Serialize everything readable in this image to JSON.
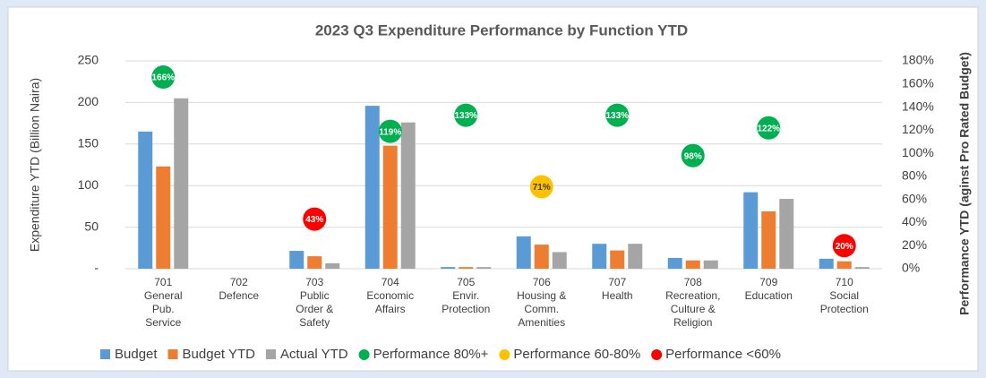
{
  "chart_data": {
    "type": "bar",
    "title": "2023 Q3 Expenditure Performance by Function YTD",
    "y_label": "Expenditure YTD (Billion Naira)",
    "y2_label": "Performance YTD (aginst Pro Rated Budget)",
    "categories": [
      [
        "701",
        "General",
        "Pub.",
        "Service"
      ],
      [
        "702",
        "Defence"
      ],
      [
        "703",
        "Public",
        "Order &",
        "Safety"
      ],
      [
        "704",
        "Economic",
        "Affairs"
      ],
      [
        "705",
        "Envir.",
        "Protection"
      ],
      [
        "706",
        "Housing &",
        "Comm.",
        "Amenities"
      ],
      [
        "707",
        "Health"
      ],
      [
        "708",
        "Recreation,",
        "Culture &",
        "Religion"
      ],
      [
        "709",
        "Education"
      ],
      [
        "710",
        "Social",
        "Protection"
      ]
    ],
    "ylim": [
      0,
      250
    ],
    "yticks": [
      {
        "value": 0,
        "label": "-"
      },
      50,
      100,
      150,
      200,
      250
    ],
    "y2lim": [
      0,
      180
    ],
    "y2ticks": [
      {
        "value": 0,
        "label": "0%"
      },
      {
        "value": 20,
        "label": "20%"
      },
      {
        "value": 40,
        "label": "40%"
      },
      {
        "value": 60,
        "label": "60%"
      },
      {
        "value": 80,
        "label": "80%"
      },
      {
        "value": 100,
        "label": "100%"
      },
      {
        "value": 120,
        "label": "120%"
      },
      {
        "value": 140,
        "label": "140%"
      },
      {
        "value": 160,
        "label": "160%"
      },
      {
        "value": 180,
        "label": "180%"
      }
    ],
    "grid": true,
    "series": [
      {
        "name": "Budget",
        "color": "#5b9bd5",
        "values": [
          165,
          0,
          21.5,
          196,
          2,
          39,
          30,
          13,
          92,
          12
        ]
      },
      {
        "name": "Budget YTD",
        "color": "#ed7d31",
        "values": [
          123,
          0,
          15,
          148,
          2,
          29,
          22,
          10,
          69,
          9
        ]
      },
      {
        "name": "Actual YTD",
        "color": "#a5a5a5",
        "values": [
          205,
          0,
          6.5,
          176,
          2,
          20,
          30,
          10,
          84,
          2
        ]
      },
      {
        "name": "Performance 80%+",
        "type": "scatter",
        "axis": "y2",
        "color": "#00b050",
        "text_color": "#ffffff",
        "values": [
          166,
          null,
          null,
          119,
          133,
          null,
          133,
          98,
          122,
          null
        ],
        "value_labels": [
          "166%",
          null,
          null,
          "119%",
          "133%",
          null,
          "133%",
          "98%",
          "122%",
          null
        ]
      },
      {
        "name": "Performance 60-80%",
        "type": "scatter",
        "axis": "y2",
        "color": "#ffc000",
        "text_color": "#404040",
        "values": [
          null,
          null,
          null,
          null,
          null,
          71,
          null,
          null,
          null,
          null
        ],
        "value_labels": [
          null,
          null,
          null,
          null,
          null,
          "71%",
          null,
          null,
          null,
          null
        ]
      },
      {
        "name": "Performance <60%",
        "type": "scatter",
        "axis": "y2",
        "color": "#ff0000",
        "text_color": "#ffffff",
        "values": [
          null,
          null,
          43,
          null,
          null,
          null,
          null,
          null,
          null,
          20
        ],
        "value_labels": [
          null,
          null,
          "43%",
          null,
          null,
          null,
          null,
          null,
          null,
          "20%"
        ]
      }
    ]
  }
}
